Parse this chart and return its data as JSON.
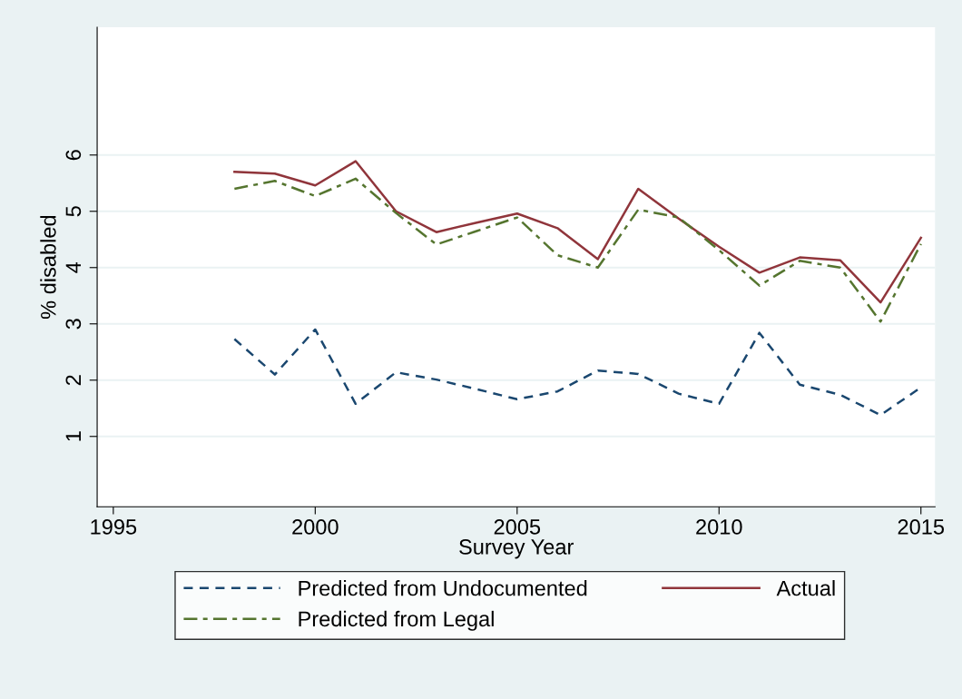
{
  "chart_data": {
    "type": "line",
    "xlabel": "Survey Year",
    "ylabel": "% disabled",
    "x": [
      1998,
      1999,
      2000,
      2001,
      2002,
      2003,
      2004,
      2005,
      2006,
      2007,
      2008,
      2009,
      2010,
      2011,
      2012,
      2013,
      2014,
      2015
    ],
    "series": [
      {
        "name": "Predicted from Undocumented",
        "color": "#1a476f",
        "line_style": "dashed",
        "values": [
          2.73,
          2.1,
          2.9,
          1.58,
          2.14,
          2.01,
          1.84,
          1.66,
          1.8,
          2.17,
          2.11,
          1.76,
          1.58,
          2.84,
          1.92,
          1.74,
          1.38,
          1.87
        ]
      },
      {
        "name": "Actual",
        "color": "#90353b",
        "line_style": "solid",
        "values": [
          5.7,
          5.67,
          5.46,
          5.89,
          5.0,
          4.63,
          4.8,
          4.96,
          4.7,
          4.15,
          5.4,
          4.87,
          4.37,
          3.91,
          4.18,
          4.13,
          3.38,
          4.53
        ]
      },
      {
        "name": "Predicted from Legal",
        "color": "#55752f",
        "line_style": "dashdot",
        "values": [
          5.4,
          5.54,
          5.27,
          5.58,
          4.97,
          4.41,
          4.65,
          4.89,
          4.22,
          4.0,
          5.03,
          4.89,
          4.31,
          3.68,
          4.12,
          4.0,
          3.04,
          4.42
        ]
      }
    ],
    "xlim": [
      1994.6,
      2015.35
    ],
    "xticks": [
      1995,
      2000,
      2005,
      2010,
      2015
    ],
    "ylim": [
      -0.25,
      8.27
    ],
    "yticks": [
      1,
      2,
      3,
      4,
      5,
      6
    ],
    "grid": "y",
    "legend": "bottom",
    "marker": "none"
  }
}
